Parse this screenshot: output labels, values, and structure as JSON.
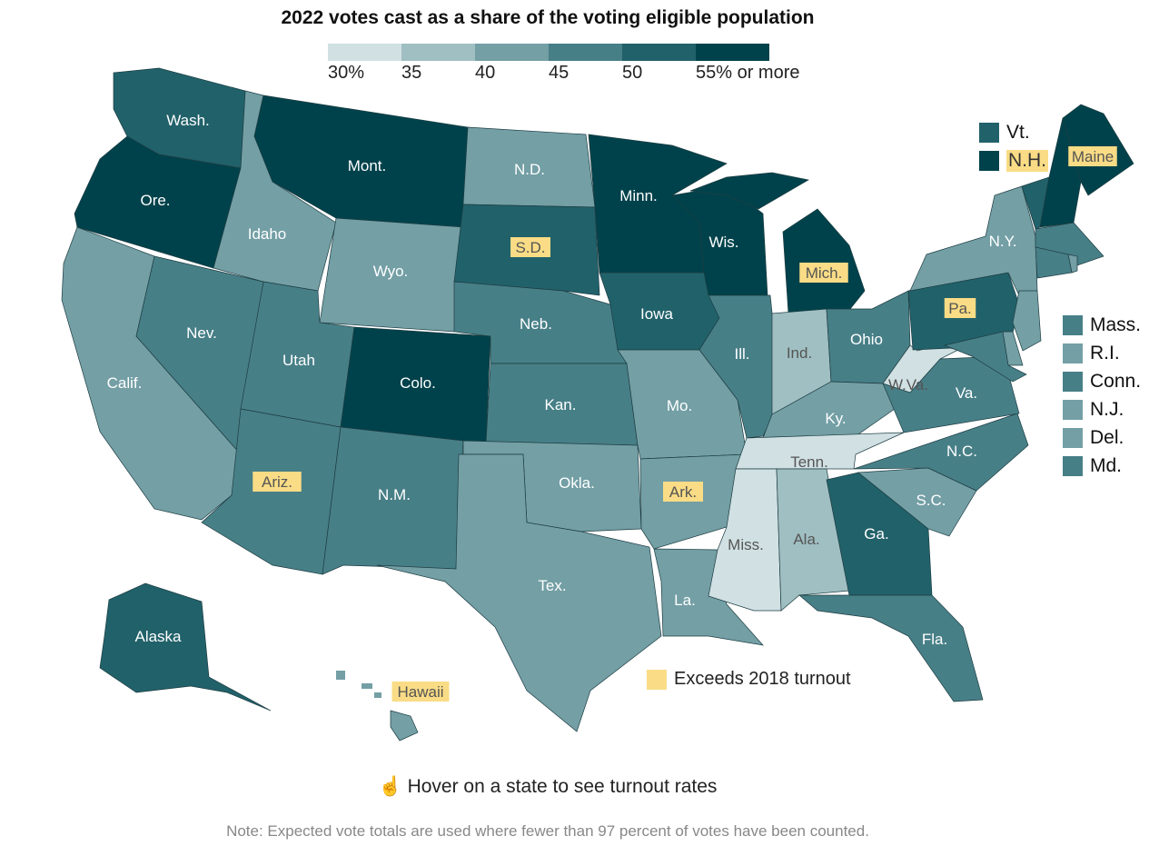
{
  "title": "2022 votes cast as a share of the voting eligible population",
  "legend": {
    "bins": [
      {
        "label": "30%",
        "color": "#d0e0e3"
      },
      {
        "label": "35",
        "color": "#a0bfc2"
      },
      {
        "label": "40",
        "color": "#739fa5"
      },
      {
        "label": "45",
        "color": "#477f87"
      },
      {
        "label": "50",
        "color": "#21616a"
      },
      {
        "label": "55% or more",
        "color": "#00424b"
      }
    ]
  },
  "highlight_color": "#f9dc85",
  "exceeds_label": "Exceeds 2018 turnout",
  "hover_hint": "Hover on a state to see turnout rates",
  "note": "Note: Expected vote totals are used where fewer than 97 percent of votes have been counted.",
  "states": [
    {
      "id": "wa",
      "label": "Wash.",
      "bin": 50,
      "exceeds": false
    },
    {
      "id": "or",
      "label": "Ore.",
      "bin": 55,
      "exceeds": false
    },
    {
      "id": "ca",
      "label": "Calif.",
      "bin": 40,
      "exceeds": false
    },
    {
      "id": "nv",
      "label": "Nev.",
      "bin": 45,
      "exceeds": false
    },
    {
      "id": "id",
      "label": "Idaho",
      "bin": 40,
      "exceeds": false
    },
    {
      "id": "mt",
      "label": "Mont.",
      "bin": 55,
      "exceeds": false
    },
    {
      "id": "wy",
      "label": "Wyo.",
      "bin": 40,
      "exceeds": false
    },
    {
      "id": "ut",
      "label": "Utah",
      "bin": 45,
      "exceeds": false
    },
    {
      "id": "co",
      "label": "Colo.",
      "bin": 55,
      "exceeds": false
    },
    {
      "id": "az",
      "label": "Ariz.",
      "bin": 45,
      "exceeds": true
    },
    {
      "id": "nm",
      "label": "N.M.",
      "bin": 45,
      "exceeds": false
    },
    {
      "id": "nd",
      "label": "N.D.",
      "bin": 40,
      "exceeds": false
    },
    {
      "id": "sd",
      "label": "S.D.",
      "bin": 50,
      "exceeds": true
    },
    {
      "id": "ne",
      "label": "Neb.",
      "bin": 45,
      "exceeds": false
    },
    {
      "id": "ks",
      "label": "Kan.",
      "bin": 45,
      "exceeds": false
    },
    {
      "id": "ok",
      "label": "Okla.",
      "bin": 40,
      "exceeds": false
    },
    {
      "id": "tx",
      "label": "Tex.",
      "bin": 40,
      "exceeds": false
    },
    {
      "id": "mn",
      "label": "Minn.",
      "bin": 55,
      "exceeds": false
    },
    {
      "id": "ia",
      "label": "Iowa",
      "bin": 50,
      "exceeds": false
    },
    {
      "id": "mo",
      "label": "Mo.",
      "bin": 40,
      "exceeds": false
    },
    {
      "id": "ar",
      "label": "Ark.",
      "bin": 40,
      "exceeds": true
    },
    {
      "id": "la",
      "label": "La.",
      "bin": 40,
      "exceeds": false
    },
    {
      "id": "wi",
      "label": "Wis.",
      "bin": 55,
      "exceeds": false
    },
    {
      "id": "il",
      "label": "Ill.",
      "bin": 45,
      "exceeds": false
    },
    {
      "id": "mi",
      "label": "Mich.",
      "bin": 55,
      "exceeds": true
    },
    {
      "id": "in",
      "label": "Ind.",
      "bin": 35,
      "exceeds": false
    },
    {
      "id": "oh",
      "label": "Ohio",
      "bin": 45,
      "exceeds": false
    },
    {
      "id": "ky",
      "label": "Ky.",
      "bin": 40,
      "exceeds": false
    },
    {
      "id": "tn",
      "label": "Tenn.",
      "bin": 30,
      "exceeds": false
    },
    {
      "id": "ms",
      "label": "Miss.",
      "bin": 30,
      "exceeds": false
    },
    {
      "id": "al",
      "label": "Ala.",
      "bin": 35,
      "exceeds": false
    },
    {
      "id": "ga",
      "label": "Ga.",
      "bin": 50,
      "exceeds": false
    },
    {
      "id": "fl",
      "label": "Fla.",
      "bin": 45,
      "exceeds": false
    },
    {
      "id": "sc",
      "label": "S.C.",
      "bin": 40,
      "exceeds": false
    },
    {
      "id": "nc",
      "label": "N.C.",
      "bin": 45,
      "exceeds": false
    },
    {
      "id": "va",
      "label": "Va.",
      "bin": 45,
      "exceeds": false
    },
    {
      "id": "wv",
      "label": "W.Va.",
      "bin": 30,
      "exceeds": false
    },
    {
      "id": "pa",
      "label": "Pa.",
      "bin": 50,
      "exceeds": true
    },
    {
      "id": "ny",
      "label": "N.Y.",
      "bin": 40,
      "exceeds": false
    },
    {
      "id": "vt",
      "label": "Vt.",
      "bin": 50,
      "exceeds": false
    },
    {
      "id": "nh",
      "label": "N.H.",
      "bin": 55,
      "exceeds": true
    },
    {
      "id": "me",
      "label": "Maine",
      "bin": 55,
      "exceeds": true
    },
    {
      "id": "ma",
      "label": "Mass.",
      "bin": 45,
      "exceeds": false
    },
    {
      "id": "ri",
      "label": "R.I.",
      "bin": 40,
      "exceeds": false
    },
    {
      "id": "ct",
      "label": "Conn.",
      "bin": 45,
      "exceeds": false
    },
    {
      "id": "nj",
      "label": "N.J.",
      "bin": 40,
      "exceeds": false
    },
    {
      "id": "de",
      "label": "Del.",
      "bin": 40,
      "exceeds": false
    },
    {
      "id": "md",
      "label": "Md.",
      "bin": 45,
      "exceeds": false
    },
    {
      "id": "ak",
      "label": "Alaska",
      "bin": 50,
      "exceeds": false
    },
    {
      "id": "hi",
      "label": "Hawaii",
      "bin": 40,
      "exceeds": true
    }
  ]
}
